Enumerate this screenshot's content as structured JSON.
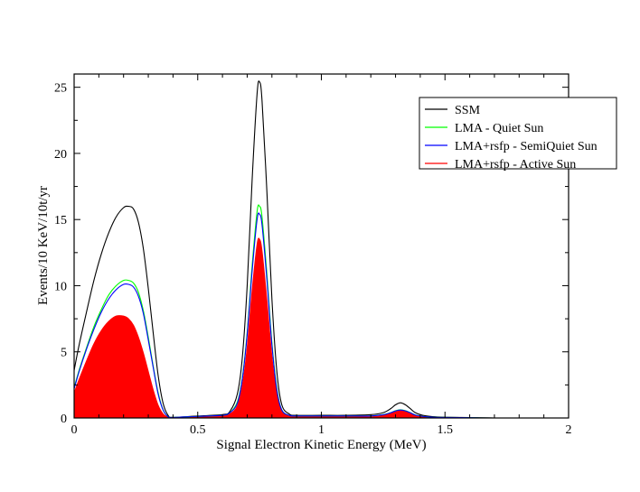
{
  "chart_data": {
    "type": "area",
    "title": "",
    "xlabel": "Signal Electron Kinetic Energy (MeV)",
    "ylabel": "Events/10 KeV/10t/yr",
    "xlim": [
      0,
      2
    ],
    "ylim": [
      0,
      26
    ],
    "xticks": [
      0,
      0.5,
      1,
      1.5,
      2
    ],
    "xtick_labels": [
      "0",
      "0.5",
      "1",
      "1.5",
      "2"
    ],
    "yticks": [
      0,
      5,
      10,
      15,
      20,
      25
    ],
    "ytick_labels": [
      "0",
      "5",
      "10",
      "15",
      "20",
      "25"
    ],
    "legend_position": "top-right",
    "series": [
      {
        "name": "SSM",
        "color": "#000000",
        "fill": false,
        "x": [
          0,
          0.02,
          0.05,
          0.08,
          0.11,
          0.14,
          0.17,
          0.2,
          0.22,
          0.24,
          0.26,
          0.28,
          0.3,
          0.32,
          0.34,
          0.36,
          0.38,
          0.4,
          0.5,
          0.6,
          0.63,
          0.66,
          0.68,
          0.7,
          0.72,
          0.74,
          0.75,
          0.76,
          0.78,
          0.8,
          0.82,
          0.84,
          0.87,
          0.9,
          1.0,
          1.1,
          1.2,
          1.25,
          1.28,
          1.3,
          1.32,
          1.34,
          1.36,
          1.38,
          1.41,
          1.45,
          1.5,
          1.6,
          1.7,
          2.0
        ],
        "y": [
          3.6,
          5.5,
          8.0,
          10.4,
          12.4,
          14.0,
          15.2,
          15.9,
          16.0,
          15.8,
          14.8,
          12.8,
          9.8,
          6.4,
          3.2,
          1.1,
          0.2,
          0.05,
          0.15,
          0.25,
          0.5,
          1.8,
          4.5,
          10.0,
          18.0,
          24.5,
          25.4,
          24.0,
          17.0,
          9.0,
          3.5,
          1.0,
          0.3,
          0.2,
          0.2,
          0.2,
          0.25,
          0.4,
          0.7,
          1.0,
          1.15,
          1.0,
          0.7,
          0.4,
          0.2,
          0.1,
          0.06,
          0.03,
          0.0,
          0.0
        ]
      },
      {
        "name": "LMA - Quiet Sun",
        "color": "#00ff00",
        "fill": false,
        "x": [
          0,
          0.02,
          0.05,
          0.08,
          0.11,
          0.14,
          0.17,
          0.2,
          0.22,
          0.24,
          0.26,
          0.28,
          0.3,
          0.32,
          0.34,
          0.36,
          0.38,
          0.4,
          0.5,
          0.6,
          0.63,
          0.66,
          0.68,
          0.7,
          0.72,
          0.74,
          0.75,
          0.76,
          0.78,
          0.8,
          0.82,
          0.84,
          0.87,
          0.9,
          1.0,
          1.1,
          1.2,
          1.25,
          1.28,
          1.3,
          1.32,
          1.34,
          1.36,
          1.38,
          1.41,
          1.45,
          1.5,
          1.6,
          1.7,
          2.0
        ],
        "y": [
          2.3,
          3.6,
          5.3,
          6.9,
          8.2,
          9.3,
          10.0,
          10.4,
          10.4,
          10.2,
          9.5,
          8.1,
          6.1,
          3.9,
          1.9,
          0.6,
          0.1,
          0.04,
          0.12,
          0.2,
          0.4,
          1.2,
          3.0,
          6.5,
          11.5,
          15.6,
          16.0,
          15.2,
          10.8,
          5.7,
          2.2,
          0.6,
          0.2,
          0.15,
          0.15,
          0.15,
          0.15,
          0.25,
          0.4,
          0.55,
          0.62,
          0.55,
          0.4,
          0.23,
          0.12,
          0.06,
          0.04,
          0.02,
          0.0,
          0.0
        ]
      },
      {
        "name": "LMA+rsfp - SemiQuiet Sun",
        "color": "#0000ff",
        "fill": false,
        "x": [
          0,
          0.02,
          0.05,
          0.08,
          0.11,
          0.14,
          0.17,
          0.2,
          0.22,
          0.24,
          0.26,
          0.28,
          0.3,
          0.32,
          0.34,
          0.36,
          0.38,
          0.4,
          0.5,
          0.6,
          0.63,
          0.66,
          0.68,
          0.7,
          0.72,
          0.74,
          0.75,
          0.76,
          0.78,
          0.8,
          0.82,
          0.84,
          0.87,
          0.9,
          1.0,
          1.1,
          1.2,
          1.25,
          1.28,
          1.3,
          1.32,
          1.34,
          1.36,
          1.38,
          1.41,
          1.45,
          1.5,
          1.6,
          1.7,
          2.0
        ],
        "y": [
          2.2,
          3.5,
          5.2,
          6.7,
          8.0,
          9.0,
          9.7,
          10.1,
          10.1,
          9.9,
          9.2,
          7.9,
          5.9,
          3.8,
          1.8,
          0.6,
          0.1,
          0.04,
          0.12,
          0.2,
          0.4,
          1.1,
          2.9,
          6.3,
          11.1,
          15.0,
          15.4,
          14.6,
          10.4,
          5.5,
          2.1,
          0.6,
          0.2,
          0.15,
          0.15,
          0.15,
          0.15,
          0.24,
          0.39,
          0.53,
          0.6,
          0.53,
          0.39,
          0.22,
          0.12,
          0.06,
          0.04,
          0.02,
          0.0,
          0.0
        ]
      },
      {
        "name": "LMA+rsfp - Active Sun",
        "color": "#ff0000",
        "fill": true,
        "x": [
          0,
          0.02,
          0.05,
          0.08,
          0.11,
          0.14,
          0.17,
          0.2,
          0.22,
          0.24,
          0.26,
          0.28,
          0.3,
          0.32,
          0.34,
          0.36,
          0.38,
          0.4,
          0.5,
          0.6,
          0.63,
          0.66,
          0.68,
          0.7,
          0.72,
          0.74,
          0.75,
          0.76,
          0.78,
          0.8,
          0.82,
          0.84,
          0.87,
          0.9,
          1.0,
          1.1,
          1.2,
          1.25,
          1.28,
          1.3,
          1.32,
          1.34,
          1.36,
          1.38,
          1.41,
          1.45,
          1.5,
          1.6,
          1.7,
          2.0
        ],
        "y": [
          1.9,
          2.9,
          4.3,
          5.6,
          6.6,
          7.3,
          7.7,
          7.7,
          7.5,
          7.0,
          6.1,
          4.9,
          3.5,
          2.1,
          0.95,
          0.3,
          0.06,
          0.02,
          0.1,
          0.15,
          0.3,
          0.9,
          2.4,
          5.3,
          9.6,
          13.1,
          13.5,
          12.6,
          8.8,
          4.6,
          1.8,
          0.5,
          0.15,
          0.12,
          0.12,
          0.12,
          0.12,
          0.2,
          0.33,
          0.46,
          0.55,
          0.48,
          0.35,
          0.2,
          0.1,
          0.05,
          0.03,
          0.01,
          0.0,
          0.0
        ]
      }
    ]
  }
}
